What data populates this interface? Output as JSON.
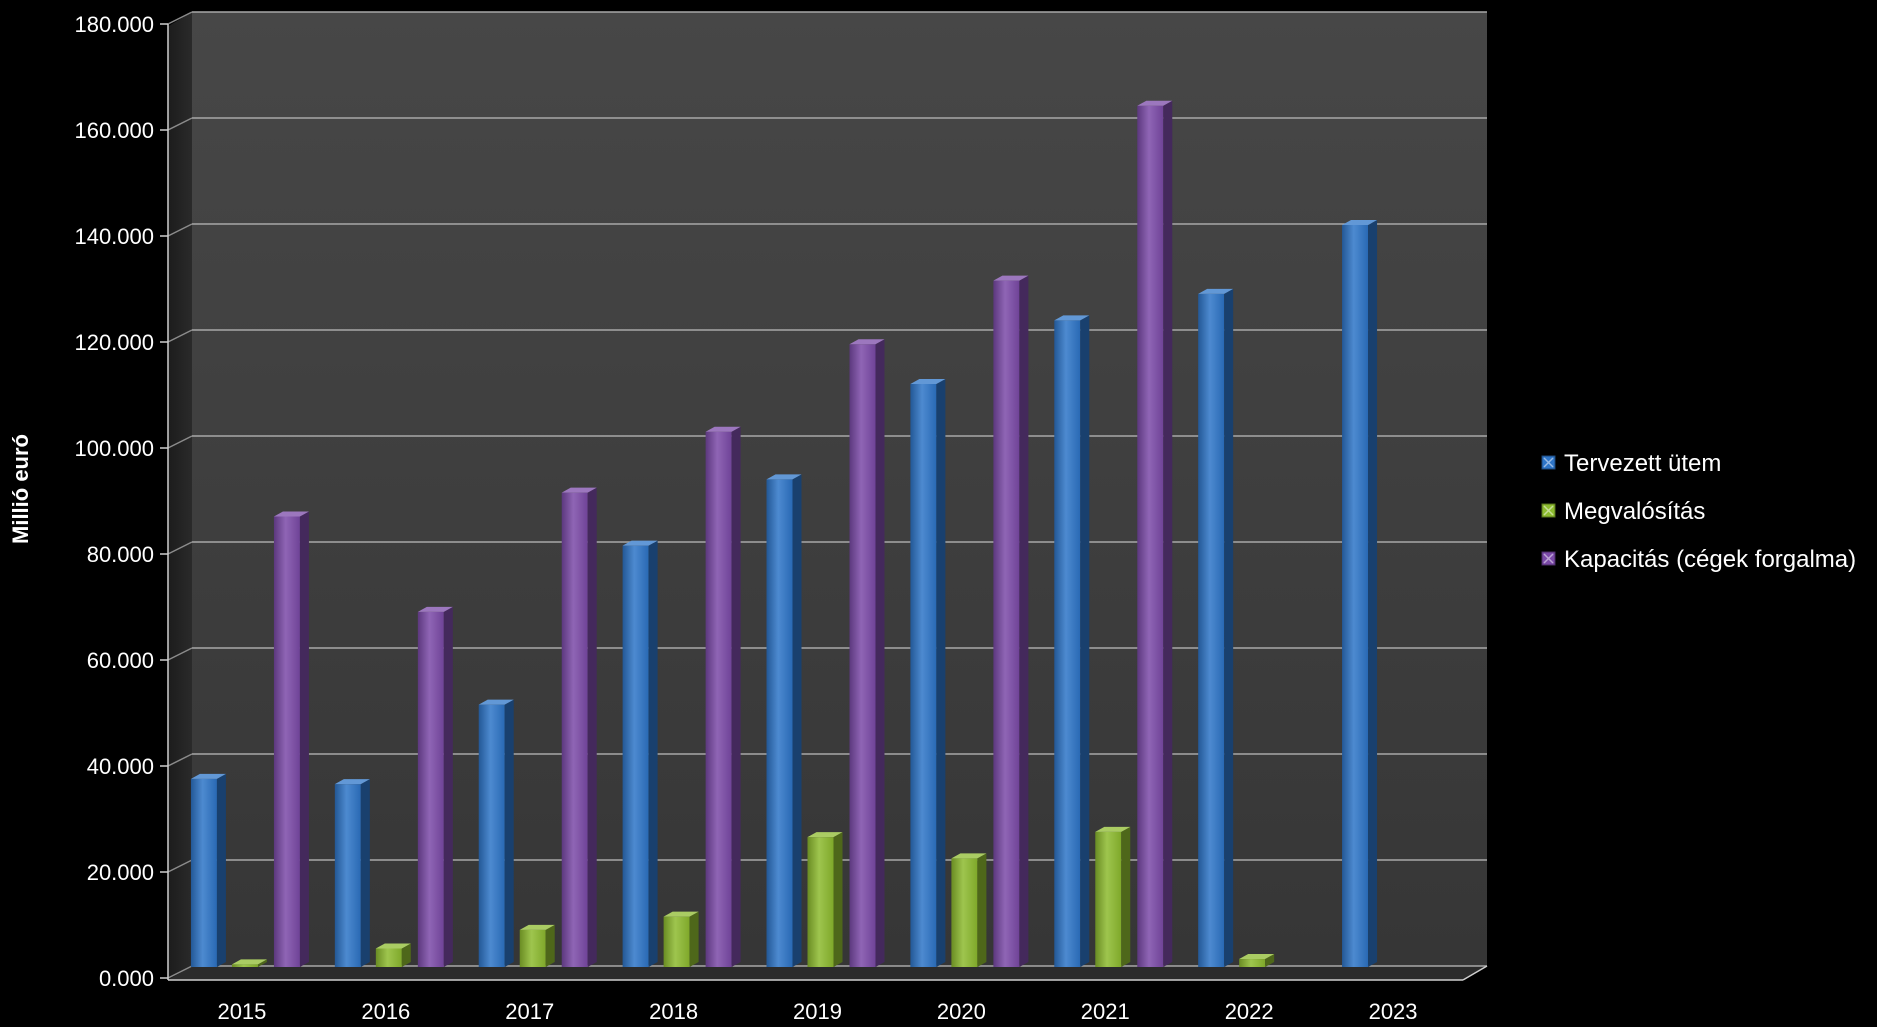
{
  "chart_data": {
    "type": "bar",
    "title": "",
    "xlabel": "",
    "ylabel": "Millió euró",
    "ylim": [
      0,
      180
    ],
    "yticks": [
      "0.000",
      "20.000",
      "40.000",
      "60.000",
      "80.000",
      "100.000",
      "120.000",
      "140.000",
      "160.000",
      "180.000"
    ],
    "grid": true,
    "legend_position": "right",
    "categories": [
      "2015",
      "2016",
      "2017",
      "2018",
      "2019",
      "2020",
      "2021",
      "2022",
      "2023"
    ],
    "series": [
      {
        "name": "Tervezett ütem",
        "color": "#2e75c8",
        "values": [
          35.5,
          34.5,
          49.5,
          79.5,
          92,
          110,
          122,
          127,
          140
        ]
      },
      {
        "name": "Megvalósítás",
        "color": "#8dbb2f",
        "values": [
          0.5,
          3.5,
          7,
          9.5,
          24.5,
          20.5,
          25.5,
          1.5,
          null
        ]
      },
      {
        "name": "Kapacitás (cégek forgalma)",
        "color": "#7b4aa8",
        "values": [
          85,
          67,
          89.5,
          101,
          117.5,
          129.5,
          162.5,
          null,
          null
        ]
      }
    ]
  }
}
